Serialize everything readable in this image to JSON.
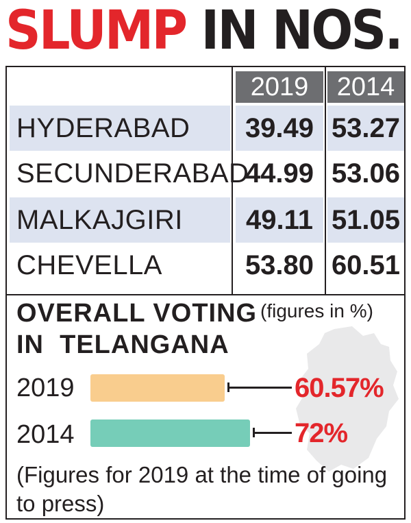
{
  "headline": {
    "part1": "SLUMP",
    "part2": "IN NOS."
  },
  "colors": {
    "accent": "#e3262b",
    "header_bg": "#6d6e71",
    "row_shade": "#dde3f0",
    "bar_2019": "#f9cd8e",
    "bar_2014": "#76cdb8"
  },
  "chart_data": [
    {
      "type": "table",
      "columns": [
        "2019",
        "2014"
      ],
      "rows": [
        {
          "label": "HYDERABAD",
          "values": [
            "39.49",
            "53.27"
          ]
        },
        {
          "label": "SECUNDERABAD",
          "values": [
            "44.99",
            "53.06"
          ]
        },
        {
          "label": "MALKAJGIRI",
          "values": [
            "49.11",
            "51.05"
          ]
        },
        {
          "label": "CHEVELLA",
          "values": [
            "53.80",
            "60.51"
          ]
        }
      ]
    },
    {
      "type": "bar",
      "orientation": "horizontal",
      "title_line1": "OVERALL VOTING",
      "title_line2": "IN  TELANGANA",
      "note": "(figures in %)",
      "categories": [
        "2019",
        "2014"
      ],
      "values": [
        60.57,
        72
      ],
      "labels": [
        "60.57%",
        "72%"
      ],
      "xlim": [
        0,
        80
      ]
    }
  ],
  "footnote": "(Figures for 2019 at the time of going to press)"
}
